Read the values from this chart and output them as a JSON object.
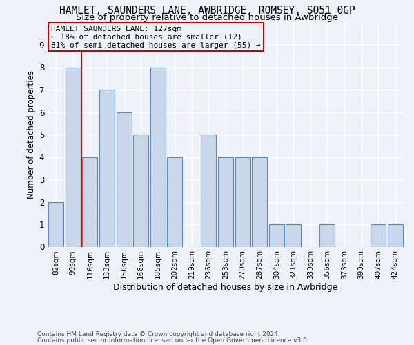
{
  "title": "HAMLET, SAUNDERS LANE, AWBRIDGE, ROMSEY, SO51 0GP",
  "subtitle": "Size of property relative to detached houses in Awbridge",
  "xlabel_bottom": "Distribution of detached houses by size in Awbridge",
  "ylabel": "Number of detached properties",
  "categories": [
    "82sqm",
    "99sqm",
    "116sqm",
    "133sqm",
    "150sqm",
    "168sqm",
    "185sqm",
    "202sqm",
    "219sqm",
    "236sqm",
    "253sqm",
    "270sqm",
    "287sqm",
    "304sqm",
    "321sqm",
    "339sqm",
    "356sqm",
    "373sqm",
    "390sqm",
    "407sqm",
    "424sqm"
  ],
  "values": [
    2,
    8,
    4,
    7,
    6,
    5,
    8,
    4,
    0,
    5,
    4,
    4,
    4,
    1,
    1,
    0,
    1,
    0,
    0,
    1,
    1
  ],
  "vline_index": 1.5,
  "vline_color": "#cc0000",
  "annotation_text": "HAMLET SAUNDERS LANE: 127sqm\n← 18% of detached houses are smaller (12)\n81% of semi-detached houses are larger (55) →",
  "annotation_box_color": "#cc0000",
  "bar_color": "#c8d8ea",
  "bar_edge_color": "#5a89be",
  "ylim": [
    0,
    10
  ],
  "yticks": [
    0,
    1,
    2,
    3,
    4,
    5,
    6,
    7,
    8,
    9
  ],
  "footer_line1": "Contains HM Land Registry data © Crown copyright and database right 2024.",
  "footer_line2": "Contains public sector information licensed under the Open Government Licence v3.0.",
  "background_color": "#eef2f8",
  "grid_color": "#ffffff",
  "title_fontsize": 10.5,
  "subtitle_fontsize": 9.5,
  "annot_fontsize": 8,
  "tick_fontsize": 7.5,
  "ylabel_fontsize": 8.5,
  "xlabel_fontsize": 9,
  "footer_fontsize": 6.5
}
